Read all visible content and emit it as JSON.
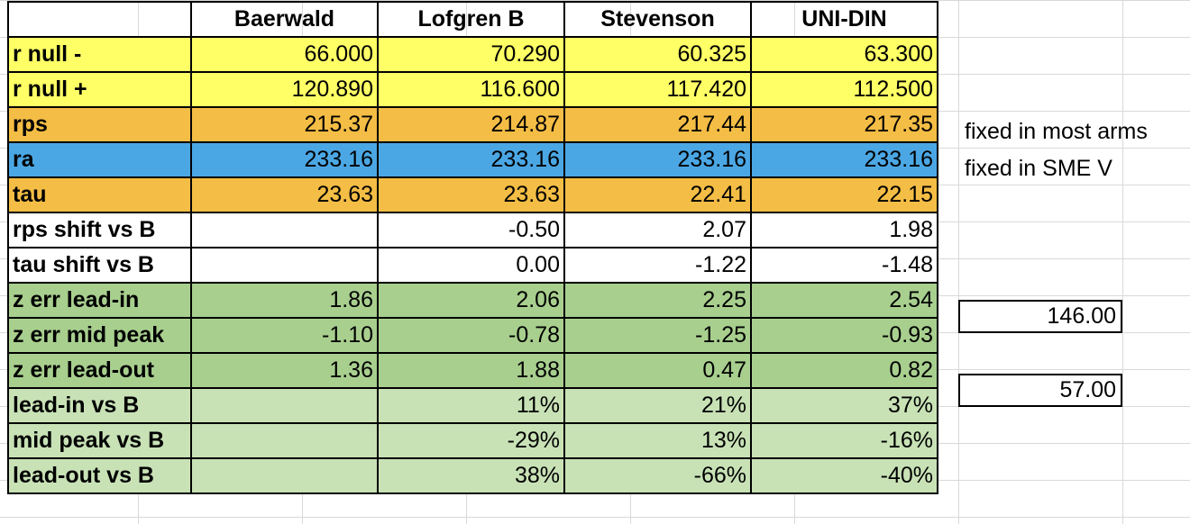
{
  "header": {
    "columns": [
      "Baerwald",
      "Lofgren B",
      "Stevenson",
      "UNI-DIN"
    ]
  },
  "rows": [
    {
      "label": "r null -",
      "style": "yellow",
      "values": [
        "66.000",
        "70.290",
        "60.325",
        "63.300"
      ]
    },
    {
      "label": "r null +",
      "style": "yellow",
      "values": [
        "120.890",
        "116.600",
        "117.420",
        "112.500"
      ]
    },
    {
      "label": "rps",
      "style": "orange",
      "values": [
        "215.37",
        "214.87",
        "217.44",
        "217.35"
      ]
    },
    {
      "label": "ra",
      "style": "blue",
      "values": [
        "233.16",
        "233.16",
        "233.16",
        "233.16"
      ]
    },
    {
      "label": "tau",
      "style": "orange",
      "values": [
        "23.63",
        "23.63",
        "22.41",
        "22.15"
      ]
    },
    {
      "label": "rps shift vs B",
      "style": "white",
      "values": [
        "",
        "-0.50",
        "2.07",
        "1.98"
      ]
    },
    {
      "label": "tau shift vs B",
      "style": "white",
      "values": [
        "",
        "0.00",
        "-1.22",
        "-1.48"
      ]
    },
    {
      "label": "z err lead-in",
      "style": "green",
      "values": [
        "1.86",
        "2.06",
        "2.25",
        "2.54"
      ]
    },
    {
      "label": "z err mid peak",
      "style": "green",
      "values": [
        "-1.10",
        "-0.78",
        "-1.25",
        "-0.93"
      ]
    },
    {
      "label": "z err lead-out",
      "style": "green",
      "values": [
        "1.36",
        "1.88",
        "0.47",
        "0.82"
      ]
    },
    {
      "label": "lead-in vs B",
      "style": "lgreen",
      "values": [
        "",
        "11%",
        "21%",
        "37%"
      ]
    },
    {
      "label": "mid peak vs B",
      "style": "lgreen",
      "values": [
        "",
        "-29%",
        "13%",
        "-16%"
      ]
    },
    {
      "label": "lead-out vs B",
      "style": "lgreen",
      "values": [
        "",
        "38%",
        "-66%",
        "-40%"
      ]
    }
  ],
  "side_notes": {
    "rps_note": "fixed in most arms",
    "ra_note": "fixed in SME V"
  },
  "side_cells": {
    "lead_in_extra": "146.00",
    "lead_out_extra": "57.00"
  },
  "colors": {
    "yellow": "#ffff66",
    "orange": "#f4bd45",
    "blue": "#4ba7e4",
    "green": "#a8cf8e",
    "light_green": "#c8e2b6"
  }
}
